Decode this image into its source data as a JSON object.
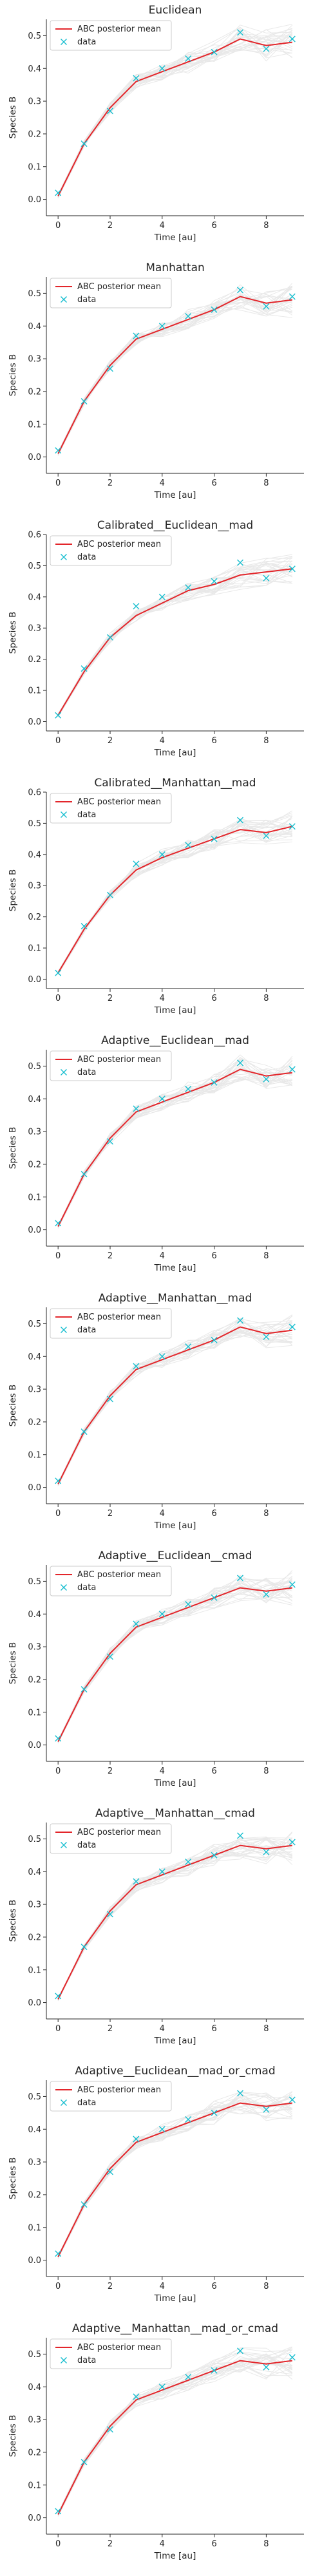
{
  "figure": {
    "legend_labels": [
      "ABC posterior mean",
      "data"
    ],
    "colors": {
      "mean": "#e3262b",
      "data": "#17becf",
      "samples": "#9a9a9a",
      "axis": "#262626"
    }
  },
  "chart_data": [
    {
      "type": "line",
      "title": "Euclidean",
      "xlabel": "Time [au]",
      "ylabel": "Species B",
      "xlim": [
        -0.45,
        9.45
      ],
      "ylim": [
        -0.05,
        0.55
      ],
      "xticks": [
        0,
        2,
        4,
        6,
        8
      ],
      "yticks": [
        0.0,
        0.1,
        0.2,
        0.3,
        0.4,
        0.5
      ],
      "legend": "top-left",
      "x": [
        0,
        1,
        2,
        3,
        4,
        5,
        6,
        7,
        8,
        9
      ],
      "series": [
        {
          "name": "ABC posterior mean",
          "values": [
            0.01,
            0.17,
            0.28,
            0.36,
            0.39,
            0.42,
            0.45,
            0.49,
            0.47,
            0.48
          ]
        },
        {
          "name": "data",
          "values": [
            0.02,
            0.17,
            0.27,
            0.37,
            0.4,
            0.43,
            0.45,
            0.51,
            0.46,
            0.49
          ]
        }
      ]
    },
    {
      "type": "line",
      "title": "Manhattan",
      "xlabel": "Time [au]",
      "ylabel": "Species B",
      "xlim": [
        -0.45,
        9.45
      ],
      "ylim": [
        -0.05,
        0.55
      ],
      "xticks": [
        0,
        2,
        4,
        6,
        8
      ],
      "yticks": [
        0.0,
        0.1,
        0.2,
        0.3,
        0.4,
        0.5
      ],
      "legend": "top-left",
      "x": [
        0,
        1,
        2,
        3,
        4,
        5,
        6,
        7,
        8,
        9
      ],
      "series": [
        {
          "name": "ABC posterior mean",
          "values": [
            0.01,
            0.17,
            0.28,
            0.36,
            0.39,
            0.42,
            0.45,
            0.49,
            0.47,
            0.48
          ]
        },
        {
          "name": "data",
          "values": [
            0.02,
            0.17,
            0.27,
            0.37,
            0.4,
            0.43,
            0.45,
            0.51,
            0.46,
            0.49
          ]
        }
      ]
    },
    {
      "type": "line",
      "title": "Calibrated__Euclidean__mad",
      "xlabel": "Time [au]",
      "ylabel": "Species B",
      "xlim": [
        -0.45,
        9.45
      ],
      "ylim": [
        -0.03,
        0.6
      ],
      "xticks": [
        0,
        2,
        4,
        6,
        8
      ],
      "yticks": [
        0.0,
        0.1,
        0.2,
        0.3,
        0.4,
        0.5,
        0.6
      ],
      "legend": "top-left",
      "x": [
        0,
        1,
        2,
        3,
        4,
        5,
        6,
        7,
        8,
        9
      ],
      "series": [
        {
          "name": "ABC posterior mean",
          "values": [
            0.02,
            0.16,
            0.27,
            0.34,
            0.38,
            0.42,
            0.44,
            0.47,
            0.48,
            0.49
          ]
        },
        {
          "name": "data",
          "values": [
            0.02,
            0.17,
            0.27,
            0.37,
            0.4,
            0.43,
            0.45,
            0.51,
            0.46,
            0.49
          ]
        }
      ]
    },
    {
      "type": "line",
      "title": "Calibrated__Manhattan__mad",
      "xlabel": "Time [au]",
      "ylabel": "Species B",
      "xlim": [
        -0.45,
        9.45
      ],
      "ylim": [
        -0.03,
        0.6
      ],
      "xticks": [
        0,
        2,
        4,
        6,
        8
      ],
      "yticks": [
        0.0,
        0.1,
        0.2,
        0.3,
        0.4,
        0.5,
        0.6
      ],
      "legend": "top-left",
      "x": [
        0,
        1,
        2,
        3,
        4,
        5,
        6,
        7,
        8,
        9
      ],
      "series": [
        {
          "name": "ABC posterior mean",
          "values": [
            0.02,
            0.16,
            0.27,
            0.35,
            0.39,
            0.42,
            0.45,
            0.48,
            0.47,
            0.49
          ]
        },
        {
          "name": "data",
          "values": [
            0.02,
            0.17,
            0.27,
            0.37,
            0.4,
            0.43,
            0.45,
            0.51,
            0.46,
            0.49
          ]
        }
      ]
    },
    {
      "type": "line",
      "title": "Adaptive__Euclidean__mad",
      "xlabel": "Time [au]",
      "ylabel": "Species B",
      "xlim": [
        -0.45,
        9.45
      ],
      "ylim": [
        -0.05,
        0.55
      ],
      "xticks": [
        0,
        2,
        4,
        6,
        8
      ],
      "yticks": [
        0.0,
        0.1,
        0.2,
        0.3,
        0.4,
        0.5
      ],
      "legend": "top-left",
      "x": [
        0,
        1,
        2,
        3,
        4,
        5,
        6,
        7,
        8,
        9
      ],
      "series": [
        {
          "name": "ABC posterior mean",
          "values": [
            0.01,
            0.17,
            0.28,
            0.36,
            0.39,
            0.42,
            0.45,
            0.49,
            0.47,
            0.48
          ]
        },
        {
          "name": "data",
          "values": [
            0.02,
            0.17,
            0.27,
            0.37,
            0.4,
            0.43,
            0.45,
            0.51,
            0.46,
            0.49
          ]
        }
      ]
    },
    {
      "type": "line",
      "title": "Adaptive__Manhattan__mad",
      "xlabel": "Time [au]",
      "ylabel": "Species B",
      "xlim": [
        -0.45,
        9.45
      ],
      "ylim": [
        -0.05,
        0.55
      ],
      "xticks": [
        0,
        2,
        4,
        6,
        8
      ],
      "yticks": [
        0.0,
        0.1,
        0.2,
        0.3,
        0.4,
        0.5
      ],
      "legend": "top-left",
      "x": [
        0,
        1,
        2,
        3,
        4,
        5,
        6,
        7,
        8,
        9
      ],
      "series": [
        {
          "name": "ABC posterior mean",
          "values": [
            0.01,
            0.17,
            0.28,
            0.36,
            0.39,
            0.42,
            0.45,
            0.49,
            0.47,
            0.48
          ]
        },
        {
          "name": "data",
          "values": [
            0.02,
            0.17,
            0.27,
            0.37,
            0.4,
            0.43,
            0.45,
            0.51,
            0.46,
            0.49
          ]
        }
      ]
    },
    {
      "type": "line",
      "title": "Adaptive__Euclidean__cmad",
      "xlabel": "Time [au]",
      "ylabel": "Species B",
      "xlim": [
        -0.45,
        9.45
      ],
      "ylim": [
        -0.05,
        0.55
      ],
      "xticks": [
        0,
        2,
        4,
        6,
        8
      ],
      "yticks": [
        0.0,
        0.1,
        0.2,
        0.3,
        0.4,
        0.5
      ],
      "legend": "top-left",
      "x": [
        0,
        1,
        2,
        3,
        4,
        5,
        6,
        7,
        8,
        9
      ],
      "series": [
        {
          "name": "ABC posterior mean",
          "values": [
            0.01,
            0.17,
            0.28,
            0.36,
            0.39,
            0.42,
            0.45,
            0.48,
            0.47,
            0.48
          ]
        },
        {
          "name": "data",
          "values": [
            0.02,
            0.17,
            0.27,
            0.37,
            0.4,
            0.43,
            0.45,
            0.51,
            0.46,
            0.49
          ]
        }
      ]
    },
    {
      "type": "line",
      "title": "Adaptive__Manhattan__cmad",
      "xlabel": "Time [au]",
      "ylabel": "Species B",
      "xlim": [
        -0.45,
        9.45
      ],
      "ylim": [
        -0.05,
        0.55
      ],
      "xticks": [
        0,
        2,
        4,
        6,
        8
      ],
      "yticks": [
        0.0,
        0.1,
        0.2,
        0.3,
        0.4,
        0.5
      ],
      "legend": "top-left",
      "x": [
        0,
        1,
        2,
        3,
        4,
        5,
        6,
        7,
        8,
        9
      ],
      "series": [
        {
          "name": "ABC posterior mean",
          "values": [
            0.01,
            0.17,
            0.28,
            0.36,
            0.39,
            0.42,
            0.45,
            0.48,
            0.47,
            0.48
          ]
        },
        {
          "name": "data",
          "values": [
            0.02,
            0.17,
            0.27,
            0.37,
            0.4,
            0.43,
            0.45,
            0.51,
            0.46,
            0.49
          ]
        }
      ]
    },
    {
      "type": "line",
      "title": "Adaptive__Euclidean__mad_or_cmad",
      "xlabel": "Time [au]",
      "ylabel": "Species B",
      "xlim": [
        -0.45,
        9.45
      ],
      "ylim": [
        -0.05,
        0.55
      ],
      "xticks": [
        0,
        2,
        4,
        6,
        8
      ],
      "yticks": [
        0.0,
        0.1,
        0.2,
        0.3,
        0.4,
        0.5
      ],
      "legend": "top-left",
      "x": [
        0,
        1,
        2,
        3,
        4,
        5,
        6,
        7,
        8,
        9
      ],
      "series": [
        {
          "name": "ABC posterior mean",
          "values": [
            0.01,
            0.17,
            0.28,
            0.36,
            0.39,
            0.42,
            0.45,
            0.48,
            0.47,
            0.48
          ]
        },
        {
          "name": "data",
          "values": [
            0.02,
            0.17,
            0.27,
            0.37,
            0.4,
            0.43,
            0.45,
            0.51,
            0.46,
            0.49
          ]
        }
      ]
    },
    {
      "type": "line",
      "title": "Adaptive__Manhattan__mad_or_cmad",
      "xlabel": "Time [au]",
      "ylabel": "Species B",
      "xlim": [
        -0.45,
        9.45
      ],
      "ylim": [
        -0.05,
        0.55
      ],
      "xticks": [
        0,
        2,
        4,
        6,
        8
      ],
      "yticks": [
        0.0,
        0.1,
        0.2,
        0.3,
        0.4,
        0.5
      ],
      "legend": "top-left",
      "x": [
        0,
        1,
        2,
        3,
        4,
        5,
        6,
        7,
        8,
        9
      ],
      "series": [
        {
          "name": "ABC posterior mean",
          "values": [
            0.01,
            0.17,
            0.28,
            0.36,
            0.39,
            0.42,
            0.45,
            0.48,
            0.47,
            0.48
          ]
        },
        {
          "name": "data",
          "values": [
            0.02,
            0.17,
            0.27,
            0.37,
            0.4,
            0.43,
            0.45,
            0.51,
            0.46,
            0.49
          ]
        }
      ]
    }
  ]
}
